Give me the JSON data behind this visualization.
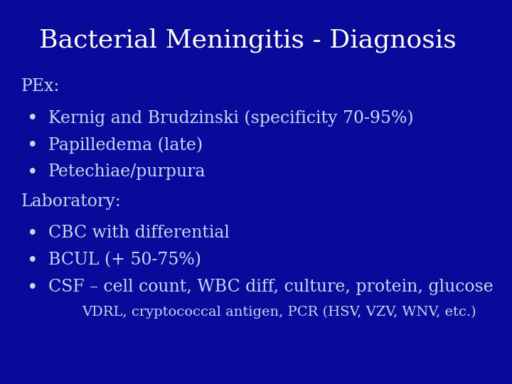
{
  "title": "Bacterial Meningitis - Diagnosis",
  "bg_color": "#0a0a9a",
  "title_color": "#FFFFF0",
  "text_color": "#C8D8F0",
  "title_fontsize": 26,
  "body_fontsize": 17,
  "sub_fontsize": 14,
  "section1_label": "PEx:",
  "bullets1": [
    "Kernig and Brudzinski (specificity 70-95%)",
    "Papilledema (late)",
    "Petechiae/purpura"
  ],
  "section2_label": "Laboratory:",
  "bullets2": [
    "CBC with differential",
    "BCUL (+ 50-75%)",
    "CSF – cell count, WBC diff, culture, protein, glucose"
  ],
  "sub_bullet": "VDRL, cryptococcal antigen, PCR (HSV, VZV, WNV, etc.)",
  "bullet_char": "•"
}
